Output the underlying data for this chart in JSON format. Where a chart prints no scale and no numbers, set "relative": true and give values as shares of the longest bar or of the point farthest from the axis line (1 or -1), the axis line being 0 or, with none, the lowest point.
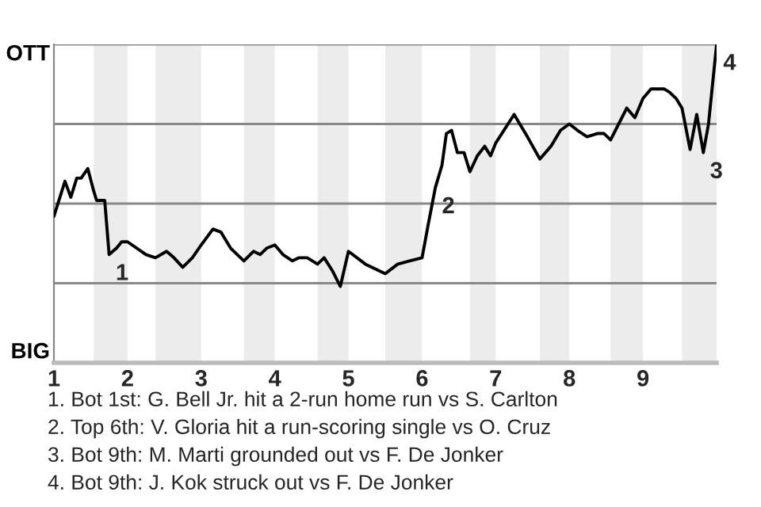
{
  "chart_data": {
    "type": "line",
    "relative": true,
    "x": [
      1.0,
      1.15,
      1.23,
      1.31,
      1.37,
      1.46,
      1.54,
      1.58,
      1.69,
      1.75,
      1.85,
      1.92,
      2.0,
      2.25,
      2.38,
      2.53,
      2.63,
      2.75,
      2.88,
      3.0,
      3.16,
      3.27,
      3.4,
      3.58,
      3.71,
      3.8,
      3.89,
      4.0,
      4.11,
      4.24,
      4.33,
      4.44,
      4.58,
      4.67,
      4.78,
      4.89,
      5.0,
      5.23,
      5.5,
      5.67,
      5.83,
      6.0,
      6.08,
      6.18,
      6.27,
      6.33,
      6.4,
      6.48,
      6.57,
      6.65,
      6.75,
      6.85,
      6.93,
      7.0,
      7.25,
      7.43,
      7.6,
      7.75,
      7.88,
      8.0,
      8.11,
      8.24,
      8.38,
      8.47,
      8.56,
      8.67,
      8.78,
      8.89,
      9.0,
      9.11,
      9.2,
      9.29,
      9.36,
      9.45,
      9.53,
      9.64,
      9.73,
      9.82,
      9.89,
      10.0
    ],
    "series": [
      {
        "color": "#000000",
        "values": [
          0.46,
          0.57,
          0.52,
          0.58,
          0.58,
          0.61,
          0.54,
          0.51,
          0.51,
          0.34,
          0.36,
          0.38,
          0.38,
          0.34,
          0.33,
          0.35,
          0.33,
          0.3,
          0.33,
          0.37,
          0.42,
          0.41,
          0.36,
          0.32,
          0.35,
          0.34,
          0.36,
          0.37,
          0.34,
          0.32,
          0.33,
          0.33,
          0.31,
          0.33,
          0.29,
          0.24,
          0.35,
          0.31,
          0.28,
          0.31,
          0.32,
          0.33,
          0.43,
          0.55,
          0.62,
          0.72,
          0.73,
          0.66,
          0.66,
          0.6,
          0.65,
          0.68,
          0.65,
          0.69,
          0.78,
          0.71,
          0.64,
          0.68,
          0.73,
          0.75,
          0.73,
          0.71,
          0.72,
          0.72,
          0.7,
          0.75,
          0.8,
          0.77,
          0.83,
          0.86,
          0.86,
          0.86,
          0.85,
          0.83,
          0.8,
          0.67,
          0.78,
          0.66,
          0.75,
          1.0
        ]
      }
    ],
    "xlim": [
      1,
      10
    ],
    "xticks": [
      1,
      2,
      3,
      4,
      5,
      6,
      7,
      8,
      9
    ],
    "grid": "y",
    "bands": [
      {
        "axis": "x",
        "from": 1.54,
        "to": 2,
        "color": "#ececec"
      },
      {
        "axis": "x",
        "from": 2.38,
        "to": 3,
        "color": "#ececec"
      },
      {
        "axis": "x",
        "from": 3.58,
        "to": 4,
        "color": "#ececec"
      },
      {
        "axis": "x",
        "from": 4.58,
        "to": 5,
        "color": "#ececec"
      },
      {
        "axis": "x",
        "from": 5.5,
        "to": 6,
        "color": "#ececec"
      },
      {
        "axis": "x",
        "from": 6.65,
        "to": 7,
        "color": "#ececec"
      },
      {
        "axis": "x",
        "from": 7.6,
        "to": 8,
        "color": "#ececec"
      },
      {
        "axis": "x",
        "from": 8.56,
        "to": 9,
        "color": "#ececec"
      },
      {
        "axis": "x",
        "from": 9.53,
        "to": 10,
        "color": "#ececec"
      }
    ],
    "annotations": [
      {
        "text": "1",
        "x": 1.75,
        "y": 0.34
      },
      {
        "text": "2",
        "x": 6.18,
        "y": 0.55
      },
      {
        "text": "3",
        "x": 9.82,
        "y": 0.66
      },
      {
        "text": "4",
        "x": 10.0,
        "y": 1.0
      },
      "OTT",
      "BIG",
      "1. Bot 1st: G. Bell Jr. hit a 2-run home run vs S. Carlton",
      "2. Top 6th: V. Gloria hit a run-scoring single vs O. Cruz",
      "3. Bot 9th: M. Marti grounded out vs F. De Jonker",
      "4. Bot 9th: J. Kok struck out vs F. De Jonker"
    ]
  }
}
